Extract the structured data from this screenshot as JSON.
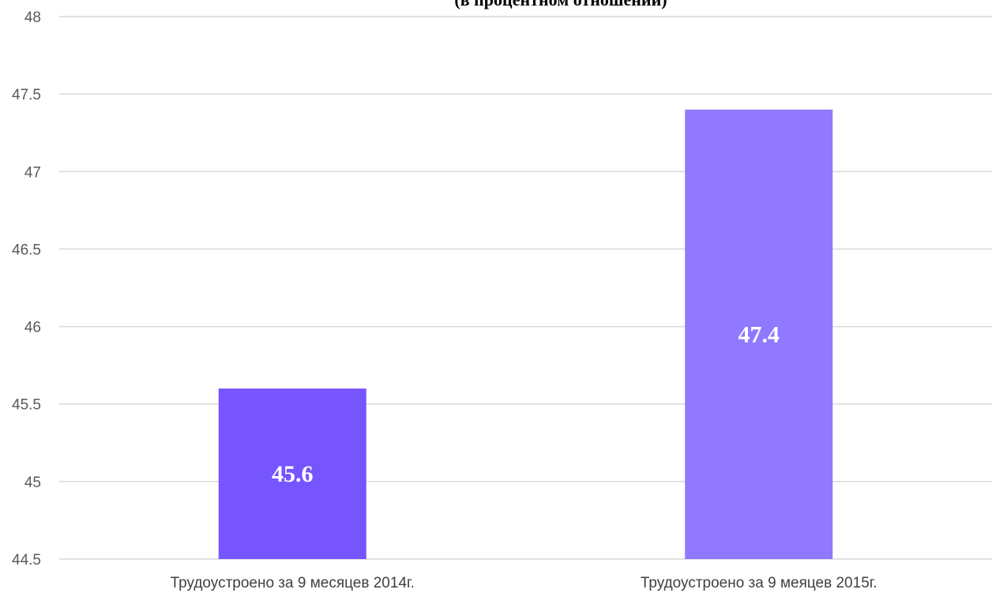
{
  "chart_data": {
    "type": "bar",
    "title": "(в процентном отношении)",
    "categories": [
      "Трудоустроено за 9 месяцев 2014г.",
      "Трудоустроено за 9 меяцев 2015г."
    ],
    "values": [
      45.6,
      47.4
    ],
    "data_labels": [
      "45.6",
      "47.4"
    ],
    "bar_colors": [
      "#7655ff",
      "#9078ff"
    ],
    "ylim": [
      44.5,
      48
    ],
    "yticks": [
      "44.5",
      "45",
      "45.5",
      "46",
      "46.5",
      "47",
      "47.5",
      "48"
    ],
    "grid": true,
    "legend": "none",
    "xlabel": "",
    "ylabel": ""
  }
}
